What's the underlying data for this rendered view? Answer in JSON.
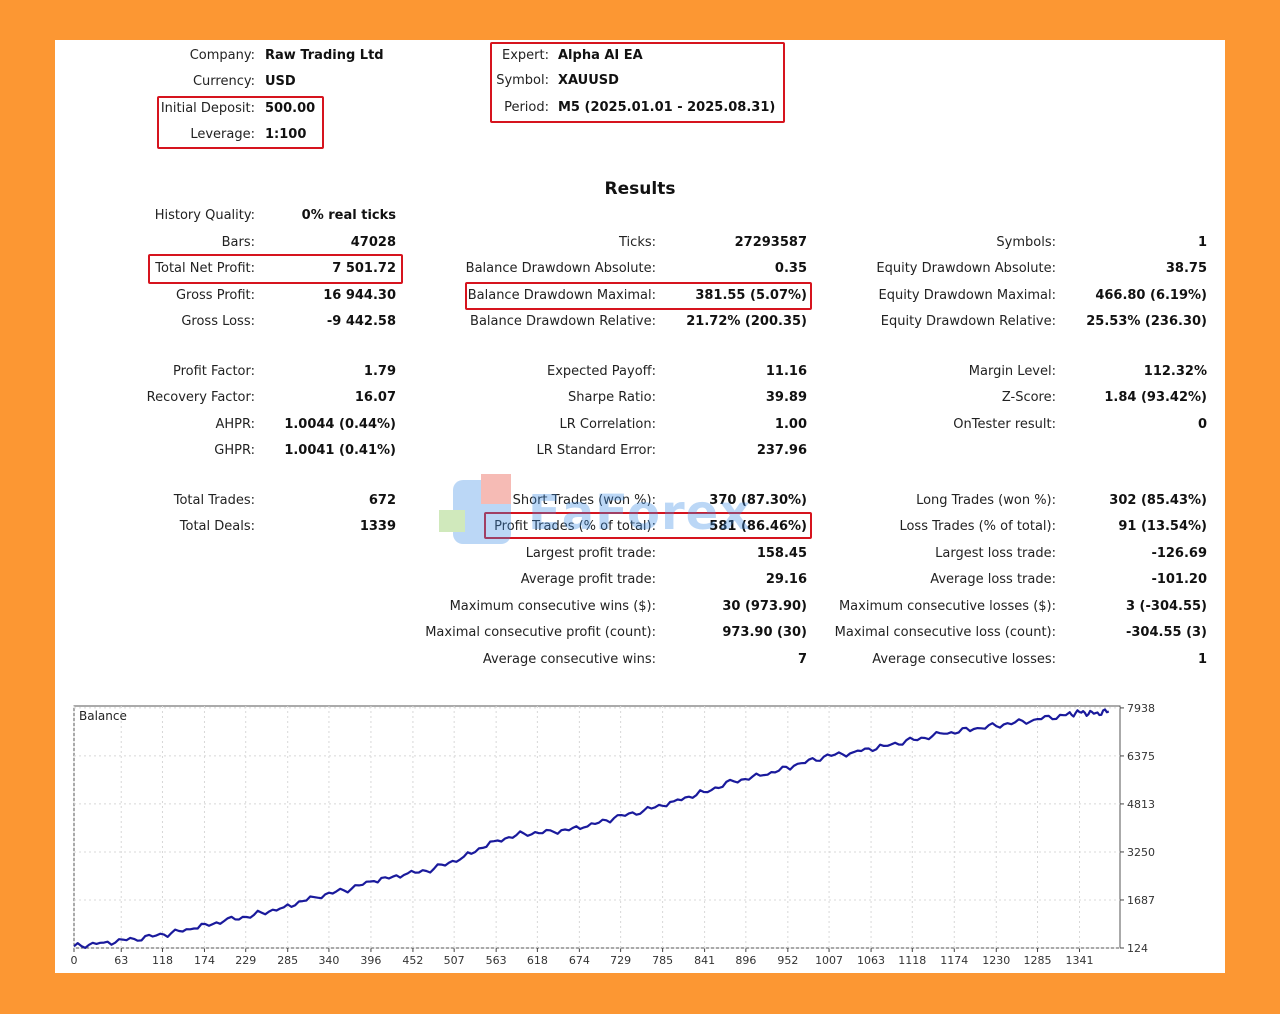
{
  "header": {
    "left": [
      {
        "label": "Company:",
        "value": "Raw Trading Ltd"
      },
      {
        "label": "Currency:",
        "value": "USD"
      },
      {
        "label": "Initial Deposit:",
        "value": "500.00"
      },
      {
        "label": "Leverage:",
        "value": "1:100"
      }
    ],
    "right": [
      {
        "label": "Expert:",
        "value": "Alpha AI EA"
      },
      {
        "label": "Symbol:",
        "value": "XAUUSD"
      },
      {
        "label": "Period:",
        "value": "M5 (2025.01.01 - 2025.08.31)"
      }
    ]
  },
  "results_title": "Results",
  "col1": [
    {
      "label": "History Quality:",
      "value": "0% real ticks"
    },
    {
      "label": "Bars:",
      "value": "47028"
    },
    {
      "label": "Total Net Profit:",
      "value": "7 501.72"
    },
    {
      "label": "Gross Profit:",
      "value": "16 944.30"
    },
    {
      "label": "Gross Loss:",
      "value": "-9 442.58"
    },
    {
      "label": "Profit Factor:",
      "value": "1.79"
    },
    {
      "label": "Recovery Factor:",
      "value": "16.07"
    },
    {
      "label": "AHPR:",
      "value": "1.0044 (0.44%)"
    },
    {
      "label": "GHPR:",
      "value": "1.0041 (0.41%)"
    },
    {
      "label": "Total Trades:",
      "value": "672"
    },
    {
      "label": "Total Deals:",
      "value": "1339"
    }
  ],
  "col2": [
    {
      "label": "Ticks:",
      "value": "27293587"
    },
    {
      "label": "Balance Drawdown Absolute:",
      "value": "0.35"
    },
    {
      "label": "Balance Drawdown Maximal:",
      "value": "381.55 (5.07%)"
    },
    {
      "label": "Balance Drawdown Relative:",
      "value": "21.72% (200.35)"
    },
    {
      "label": "Expected Payoff:",
      "value": "11.16"
    },
    {
      "label": "Sharpe Ratio:",
      "value": "39.89"
    },
    {
      "label": "LR Correlation:",
      "value": "1.00"
    },
    {
      "label": "LR Standard Error:",
      "value": "237.96"
    },
    {
      "label": "Short Trades (won %):",
      "value": "370 (87.30%)"
    },
    {
      "label": "Profit Trades (% of total):",
      "value": "581 (86.46%)"
    },
    {
      "label": "Largest profit trade:",
      "value": "158.45"
    },
    {
      "label": "Average profit trade:",
      "value": "29.16"
    },
    {
      "label": "Maximum consecutive wins ($):",
      "value": "30 (973.90)"
    },
    {
      "label": "Maximal consecutive profit (count):",
      "value": "973.90 (30)"
    },
    {
      "label": "Average consecutive wins:",
      "value": "7"
    }
  ],
  "col3": [
    {
      "label": "Symbols:",
      "value": "1"
    },
    {
      "label": "Equity Drawdown Absolute:",
      "value": "38.75"
    },
    {
      "label": "Equity Drawdown Maximal:",
      "value": "466.80 (6.19%)"
    },
    {
      "label": "Equity Drawdown Relative:",
      "value": "25.53% (236.30)"
    },
    {
      "label": "Margin Level:",
      "value": "112.32%"
    },
    {
      "label": "Z-Score:",
      "value": "1.84 (93.42%)"
    },
    {
      "label": "OnTester result:",
      "value": "0"
    },
    {
      "label": "Long Trades (won %):",
      "value": "302 (85.43%)"
    },
    {
      "label": "Loss Trades (% of total):",
      "value": "91 (13.54%)"
    },
    {
      "label": "Largest loss trade:",
      "value": "-126.69"
    },
    {
      "label": "Average loss trade:",
      "value": "-101.20"
    },
    {
      "label": "Maximum consecutive losses ($):",
      "value": "3 (-304.55)"
    },
    {
      "label": "Maximal consecutive loss (count):",
      "value": "-304.55 (3)"
    },
    {
      "label": "Average consecutive losses:",
      "value": "1"
    }
  ],
  "watermark": {
    "text": "EaForex"
  },
  "colors": {
    "highlight": "#d6141e",
    "line": "#1a1a9c",
    "background": "#fc9733",
    "grid": "#d8d8d8"
  },
  "chart_data": {
    "type": "line",
    "legend_label": "Balance",
    "x_ticks": [
      0,
      63,
      118,
      174,
      229,
      285,
      340,
      396,
      452,
      507,
      563,
      618,
      674,
      729,
      785,
      841,
      896,
      952,
      1007,
      1063,
      1118,
      1174,
      1230,
      1285,
      1341
    ],
    "y_ticks": [
      124,
      1687,
      3250,
      4813,
      6375,
      7938
    ],
    "xlim": [
      0,
      1395
    ],
    "ylim": [
      124,
      8000
    ],
    "grid": true,
    "series": [
      {
        "x": [
          0,
          40,
          80,
          120,
          160,
          200,
          240,
          280,
          320,
          360,
          400,
          440,
          480,
          520,
          560,
          600,
          640,
          680,
          720,
          760,
          800,
          840,
          880,
          920,
          960,
          1000,
          1040,
          1080,
          1120,
          1160,
          1200,
          1240,
          1280,
          1320,
          1341,
          1360,
          1380
        ],
        "y": [
          180,
          300,
          420,
          560,
          760,
          1000,
          1200,
          1450,
          1780,
          2000,
          2300,
          2500,
          2700,
          3100,
          3600,
          3850,
          3900,
          4050,
          4350,
          4600,
          4900,
          5200,
          5550,
          5750,
          6050,
          6350,
          6500,
          6700,
          6900,
          7100,
          7250,
          7400,
          7550,
          7700,
          7800,
          7750,
          7820
        ]
      }
    ]
  }
}
